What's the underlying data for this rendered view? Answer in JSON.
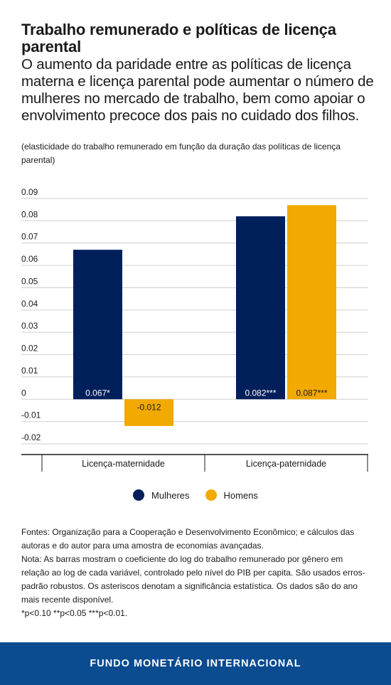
{
  "header": {
    "title": "Trabalho remunerado e políticas de licença parental",
    "subtitle": "O aumento da paridade entre as políticas de licença materna e licença parental pode aumentar o número de mulheres no mercado de trabalho, bem como apoiar o envolvimento precoce dos pais no cuidado dos filhos.",
    "units_note": "(elasticidade do trabalho remunerado em função da duração das políticas de licença parental)"
  },
  "chart_data": {
    "type": "bar",
    "categories": [
      "Licença-maternidade",
      "Licença-paternidade"
    ],
    "series": [
      {
        "name": "Mulheres",
        "color": "#001f5b",
        "values": [
          0.067,
          0.082
        ],
        "labels": [
          "0.067*",
          "0.082***"
        ]
      },
      {
        "name": "Homens",
        "color": "#f2a900",
        "values": [
          -0.012,
          0.087
        ],
        "labels": [
          "-0.012",
          "0.087***"
        ]
      }
    ],
    "ylim": [
      -0.02,
      0.09
    ],
    "yticks": [
      0.09,
      0.08,
      0.07,
      0.06,
      0.05,
      0.04,
      0.03,
      0.02,
      0.01,
      0,
      -0.01,
      -0.02
    ],
    "ytick_labels": [
      "0.09",
      "0.08",
      "0.07",
      "0.06",
      "0.05",
      "0.04",
      "0.03",
      "0.02",
      "0.01",
      "0",
      "-0.01",
      "-0.02"
    ],
    "grid": true,
    "legend": "bottom-center",
    "xlabel": "",
    "ylabel": ""
  },
  "legend": {
    "mulheres": "Mulheres",
    "homens": "Homens",
    "mulheres_color": "#001f5b",
    "homens_color": "#f2a900"
  },
  "notes": {
    "sources": "Fontes: Organização para a Cooperação e Desenvolvimento Econômico; e cálculos das autoras e do autor para uma amostra de economias avançadas.",
    "note": "Nota: As barras mostram o coeficiente do log do trabalho remunerado por gênero em relação ao log de cada variável, controlado pelo nível do PIB per capita. São usados erros-padrão robustos. Os asteriscos denotam a significância estatística. Os dados são do ano mais recente disponível.",
    "significance": "*p<0.10 **p<0.05 ***p<0.01."
  },
  "footer": {
    "org": "FUNDO MONETÁRIO INTERNACIONAL"
  }
}
